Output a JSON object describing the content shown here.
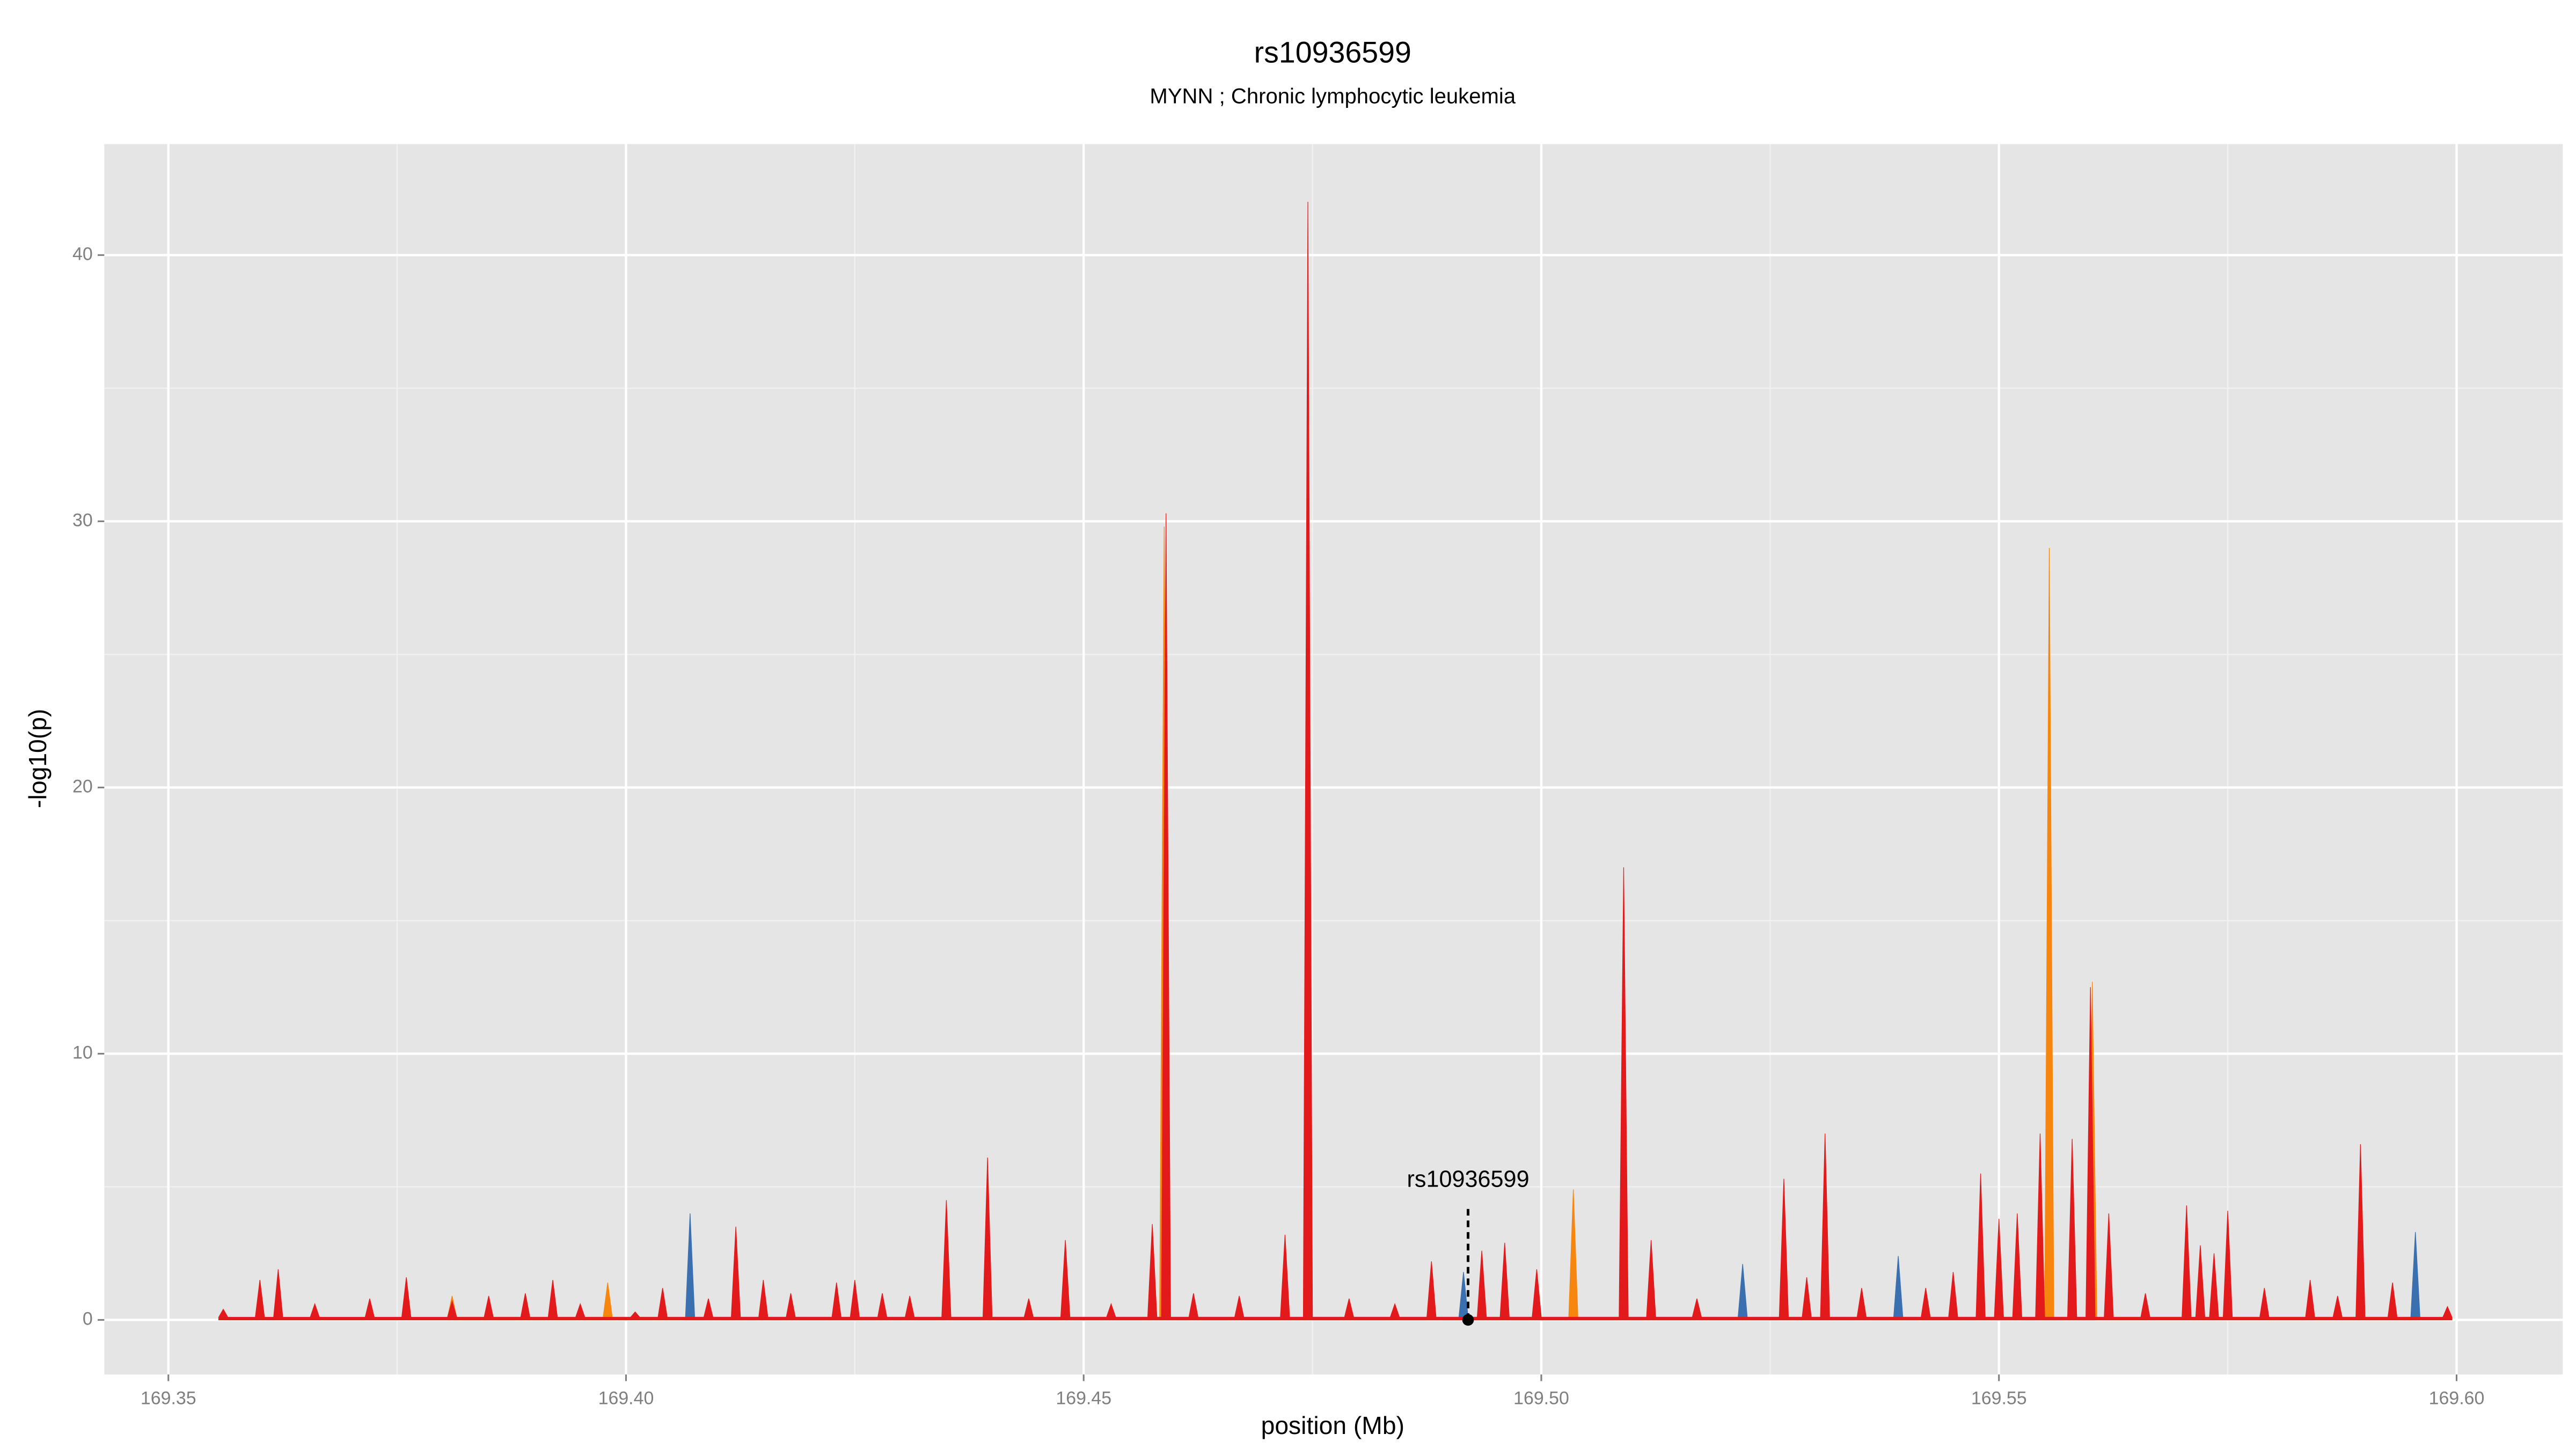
{
  "chart_data": {
    "type": "area",
    "title": "rs10936599",
    "subtitle": "MYNN ; Chronic lymphocytic leukemia",
    "x_label": "position (Mb)",
    "y_label": "-log10(p)",
    "xlim": [
      169.343,
      169.6116
    ],
    "ylim": [
      -2.05,
      44.17
    ],
    "xticks": [
      169.35,
      {
        "value": 169.4,
        "label": "169.40"
      },
      169.45,
      {
        "value": 169.5,
        "label": "169.50"
      },
      169.55,
      {
        "value": 169.6,
        "label": "169.60"
      }
    ],
    "yticks": [
      0,
      10,
      20,
      30,
      40
    ],
    "xminorticks": [
      169.375,
      169.425,
      169.475,
      169.525,
      169.575
    ],
    "yminorticks": [
      5,
      15,
      25,
      35
    ],
    "grid": true,
    "annotation": {
      "text": "rs10936599",
      "x": 169.492,
      "y": 0
    },
    "series": [
      {
        "color": "#f7860f",
        "x": [
          169.3805,
          169.381,
          169.3815,
          169.3975,
          169.398,
          169.3985,
          169.4583,
          169.4588,
          169.4593,
          169.503,
          169.5035,
          169.504,
          169.555,
          169.5555,
          169.556,
          169.5597,
          169.5602,
          169.5607
        ],
        "values": [
          0.1,
          0.9,
          0.1,
          0.1,
          1.4,
          0.1,
          0.1,
          29.8,
          0.1,
          0.1,
          4.9,
          0.1,
          0.1,
          29,
          0.1,
          0.1,
          12.7,
          0.1
        ]
      },
      {
        "color": "#3a6fb0",
        "x": [
          169.4065,
          169.407,
          169.4075,
          169.491,
          169.4915,
          169.492,
          169.5215,
          169.522,
          169.5225,
          169.5385,
          169.539,
          169.5395,
          169.595,
          169.5955,
          169.596
        ],
        "values": [
          0.1,
          4,
          0.1,
          0.1,
          1.8,
          0.1,
          0.1,
          2.1,
          0.1,
          0.1,
          2.4,
          0.1,
          0.1,
          3.3,
          0.1
        ]
      },
      {
        "color": "#e31a1c",
        "x": [
          169.3555,
          169.356,
          169.3565,
          169.3595,
          169.36,
          169.3605,
          169.3615,
          169.362,
          169.3625,
          169.3655,
          169.366,
          169.3665,
          169.3715,
          169.372,
          169.3725,
          169.3755,
          169.376,
          169.3765,
          169.3805,
          169.381,
          169.3815,
          169.3845,
          169.385,
          169.3855,
          169.3885,
          169.389,
          169.3895,
          169.3915,
          169.392,
          169.3925,
          169.3945,
          169.395,
          169.3955,
          169.4005,
          169.401,
          169.4015,
          169.4035,
          169.404,
          169.4045,
          169.4085,
          169.409,
          169.4095,
          169.4115,
          169.412,
          169.4125,
          169.4145,
          169.415,
          169.4155,
          169.4175,
          169.418,
          169.4185,
          169.4225,
          169.423,
          169.4235,
          169.4245,
          169.425,
          169.4255,
          169.4275,
          169.428,
          169.4285,
          169.4305,
          169.431,
          169.4315,
          169.4345,
          169.435,
          169.4355,
          169.439,
          169.4395,
          169.44,
          169.4435,
          169.444,
          169.4445,
          169.4475,
          169.448,
          169.4485,
          169.4525,
          169.453,
          169.4535,
          169.457,
          169.4575,
          169.458,
          169.4585,
          169.459,
          169.4595,
          169.4615,
          169.462,
          169.4625,
          169.4665,
          169.467,
          169.4675,
          169.4715,
          169.472,
          169.4725,
          169.474,
          169.4745,
          169.475,
          169.4785,
          169.479,
          169.4795,
          169.4835,
          169.484,
          169.4845,
          169.4875,
          169.488,
          169.4885,
          169.493,
          169.4935,
          169.494,
          169.4955,
          169.496,
          169.4965,
          169.499,
          169.4995,
          169.5,
          169.5085,
          169.509,
          169.5095,
          169.5115,
          169.512,
          169.5125,
          169.5165,
          169.517,
          169.5175,
          169.526,
          169.5265,
          169.527,
          169.5285,
          169.529,
          169.5295,
          169.5305,
          169.531,
          169.5315,
          169.5345,
          169.535,
          169.5355,
          169.5415,
          169.542,
          169.5425,
          169.5445,
          169.545,
          169.5455,
          169.5475,
          169.548,
          169.5485,
          169.5495,
          169.55,
          169.5505,
          169.5515,
          169.552,
          169.5525,
          169.554,
          169.5545,
          169.555,
          169.5575,
          169.558,
          169.5585,
          169.5595,
          169.56,
          169.5605,
          169.5615,
          169.562,
          169.5625,
          169.5655,
          169.566,
          169.5665,
          169.57,
          169.5705,
          169.571,
          169.5715,
          169.572,
          169.5725,
          169.573,
          169.5735,
          169.574,
          169.5745,
          169.575,
          169.5755,
          169.5785,
          169.579,
          169.5795,
          169.5835,
          169.584,
          169.5845,
          169.5865,
          169.587,
          169.5875,
          169.589,
          169.5895,
          169.59,
          169.5925,
          169.593,
          169.5935,
          169.5985,
          169.599,
          169.5995
        ],
        "values": [
          0.1,
          0.4,
          0.1,
          0.1,
          1.5,
          0.1,
          0.1,
          1.9,
          0.1,
          0.1,
          0.6,
          0.1,
          0.1,
          0.8,
          0.1,
          0.1,
          1.6,
          0.1,
          0.1,
          0.7,
          0.1,
          0.1,
          0.9,
          0.1,
          0.1,
          1,
          0.1,
          0.1,
          1.5,
          0.1,
          0.1,
          0.6,
          0.1,
          0.1,
          0.3,
          0.1,
          0.1,
          1.2,
          0.1,
          0.1,
          0.8,
          0.1,
          0.1,
          3.5,
          0.1,
          0.1,
          1.5,
          0.1,
          0.1,
          1,
          0.1,
          0.1,
          1.4,
          0.1,
          0.1,
          1.5,
          0.1,
          0.1,
          1,
          0.1,
          0.1,
          0.9,
          0.1,
          0.1,
          4.5,
          0.1,
          0.1,
          6.1,
          0.1,
          0.1,
          0.8,
          0.1,
          0.1,
          3,
          0.1,
          0.1,
          0.6,
          0.1,
          0.1,
          3.6,
          0.1,
          0.1,
          30.3,
          0.1,
          0.1,
          1,
          0.1,
          0.1,
          0.9,
          0.1,
          0.1,
          3.2,
          0.1,
          0.1,
          42,
          0.1,
          0.1,
          0.8,
          0.1,
          0.1,
          0.6,
          0.1,
          0.1,
          2.2,
          0.1,
          0.1,
          2.6,
          0.1,
          0.1,
          2.9,
          0.1,
          0.1,
          1.9,
          0.1,
          0.1,
          17,
          0.1,
          0.1,
          3,
          0.1,
          0.1,
          0.8,
          0.1,
          0.1,
          5.3,
          0.1,
          0.1,
          1.6,
          0.1,
          0.1,
          7,
          0.1,
          0.1,
          1.2,
          0.1,
          0.1,
          1.2,
          0.1,
          0.1,
          1.8,
          0.1,
          0.1,
          5.5,
          0.1,
          0.1,
          3.8,
          0.1,
          0.1,
          4,
          0.1,
          0.1,
          7,
          0.1,
          0.1,
          6.8,
          0.1,
          0.1,
          12.5,
          0.1,
          0.1,
          4,
          0.1,
          0.1,
          1,
          0.1,
          0.1,
          4.3,
          0.1,
          0.1,
          2.8,
          0.1,
          0.1,
          2.5,
          0.1,
          0.1,
          4.1,
          0.1,
          0.1,
          1.2,
          0.1,
          0.1,
          1.5,
          0.1,
          0.1,
          0.9,
          0.1,
          0.1,
          6.6,
          0.1,
          0.1,
          1.4,
          0.1,
          0.1,
          0.5,
          0.1
        ]
      }
    ]
  }
}
